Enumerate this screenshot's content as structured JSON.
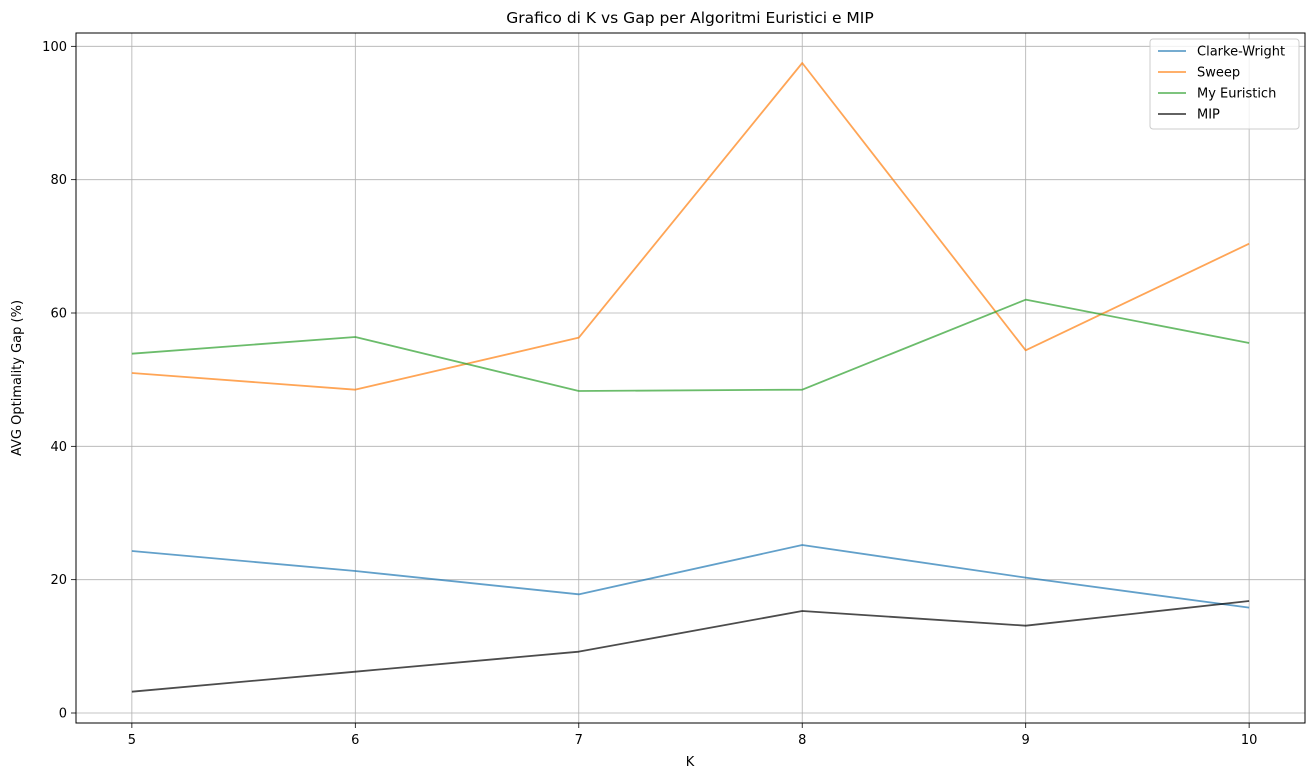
{
  "chart_data": {
    "type": "line",
    "title": "Grafico di K vs Gap per Algoritmi Euristici e MIP",
    "xlabel": "K",
    "ylabel": "AVG Optimality Gap (%)",
    "x": [
      5,
      6,
      7,
      8,
      9,
      10
    ],
    "xticks": [
      "5",
      "6",
      "7",
      "8",
      "9",
      "10"
    ],
    "yticks": [
      "0",
      "20",
      "40",
      "60",
      "80",
      "100"
    ],
    "xlim": [
      4.75,
      10.25
    ],
    "ylim": [
      -1.5,
      102.0
    ],
    "grid": true,
    "legend_position": "top-right",
    "series": [
      {
        "name": "Clarke-Wright",
        "color": "#1f77b4",
        "values": [
          24.3,
          21.3,
          17.8,
          25.2,
          20.3,
          15.8
        ]
      },
      {
        "name": "Sweep",
        "color": "#ff7f0e",
        "values": [
          51.0,
          48.5,
          56.3,
          97.5,
          54.4,
          70.4
        ]
      },
      {
        "name": "My Euristich",
        "color": "#2ca02c",
        "values": [
          53.9,
          56.4,
          48.3,
          48.5,
          62.0,
          55.5
        ]
      },
      {
        "name": "MIP",
        "color": "#000000",
        "values": [
          3.2,
          6.2,
          9.2,
          15.3,
          13.1,
          16.8
        ]
      }
    ]
  }
}
